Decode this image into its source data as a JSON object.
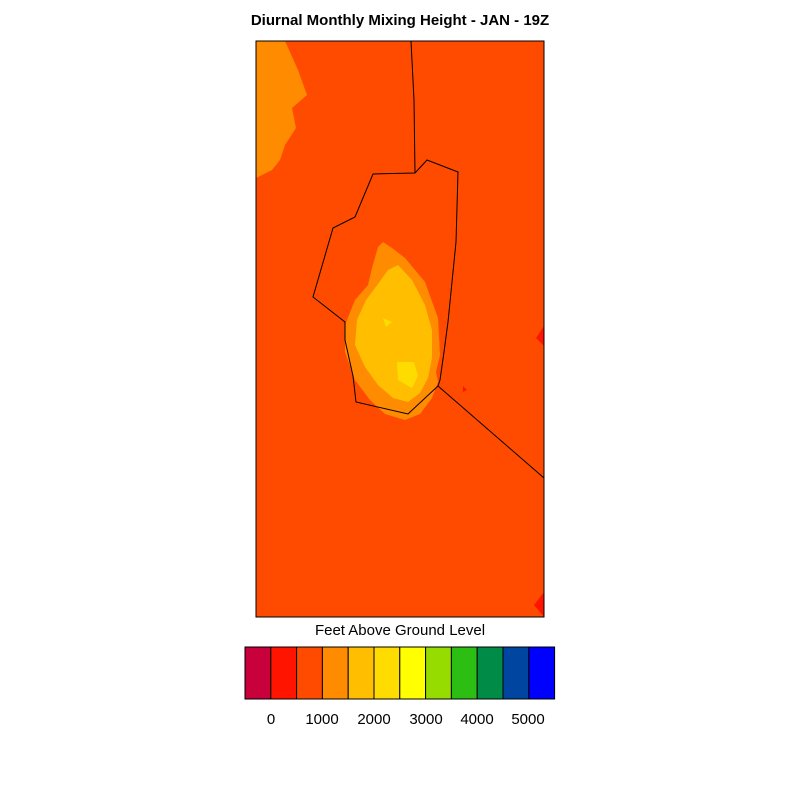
{
  "title": "Diurnal Monthly Mixing Height - JAN - 19Z",
  "colorbar": {
    "title": "Feet Above Ground Level",
    "colors": [
      "#c8003c",
      "#ff1400",
      "#ff4b00",
      "#ff8c00",
      "#ffbe00",
      "#ffdc00",
      "#ffff00",
      "#96dc00",
      "#2dbe14",
      "#008c46",
      "#0046a0",
      "#0000ff"
    ],
    "tick_labels": [
      "0",
      "1000",
      "2000",
      "3000",
      "4000",
      "5000"
    ]
  },
  "map_colors": {
    "background_fill": "#ff4b00",
    "level_1500": "#ff8c00",
    "level_2000": "#ffbe00",
    "level_2500": "#ffdc00",
    "level_500": "#ff1400",
    "boundary": "#000000"
  }
}
